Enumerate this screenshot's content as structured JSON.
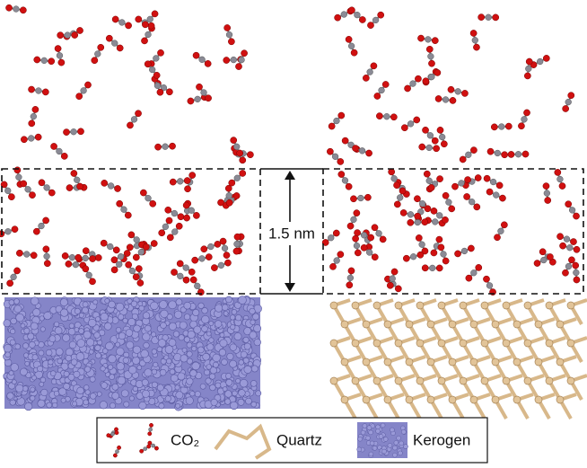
{
  "pore_width_label": "1.5 nm",
  "legend": {
    "items": [
      {
        "label": "CO₂"
      },
      {
        "label": "Quartz"
      },
      {
        "label": "Kerogen"
      }
    ]
  }
}
